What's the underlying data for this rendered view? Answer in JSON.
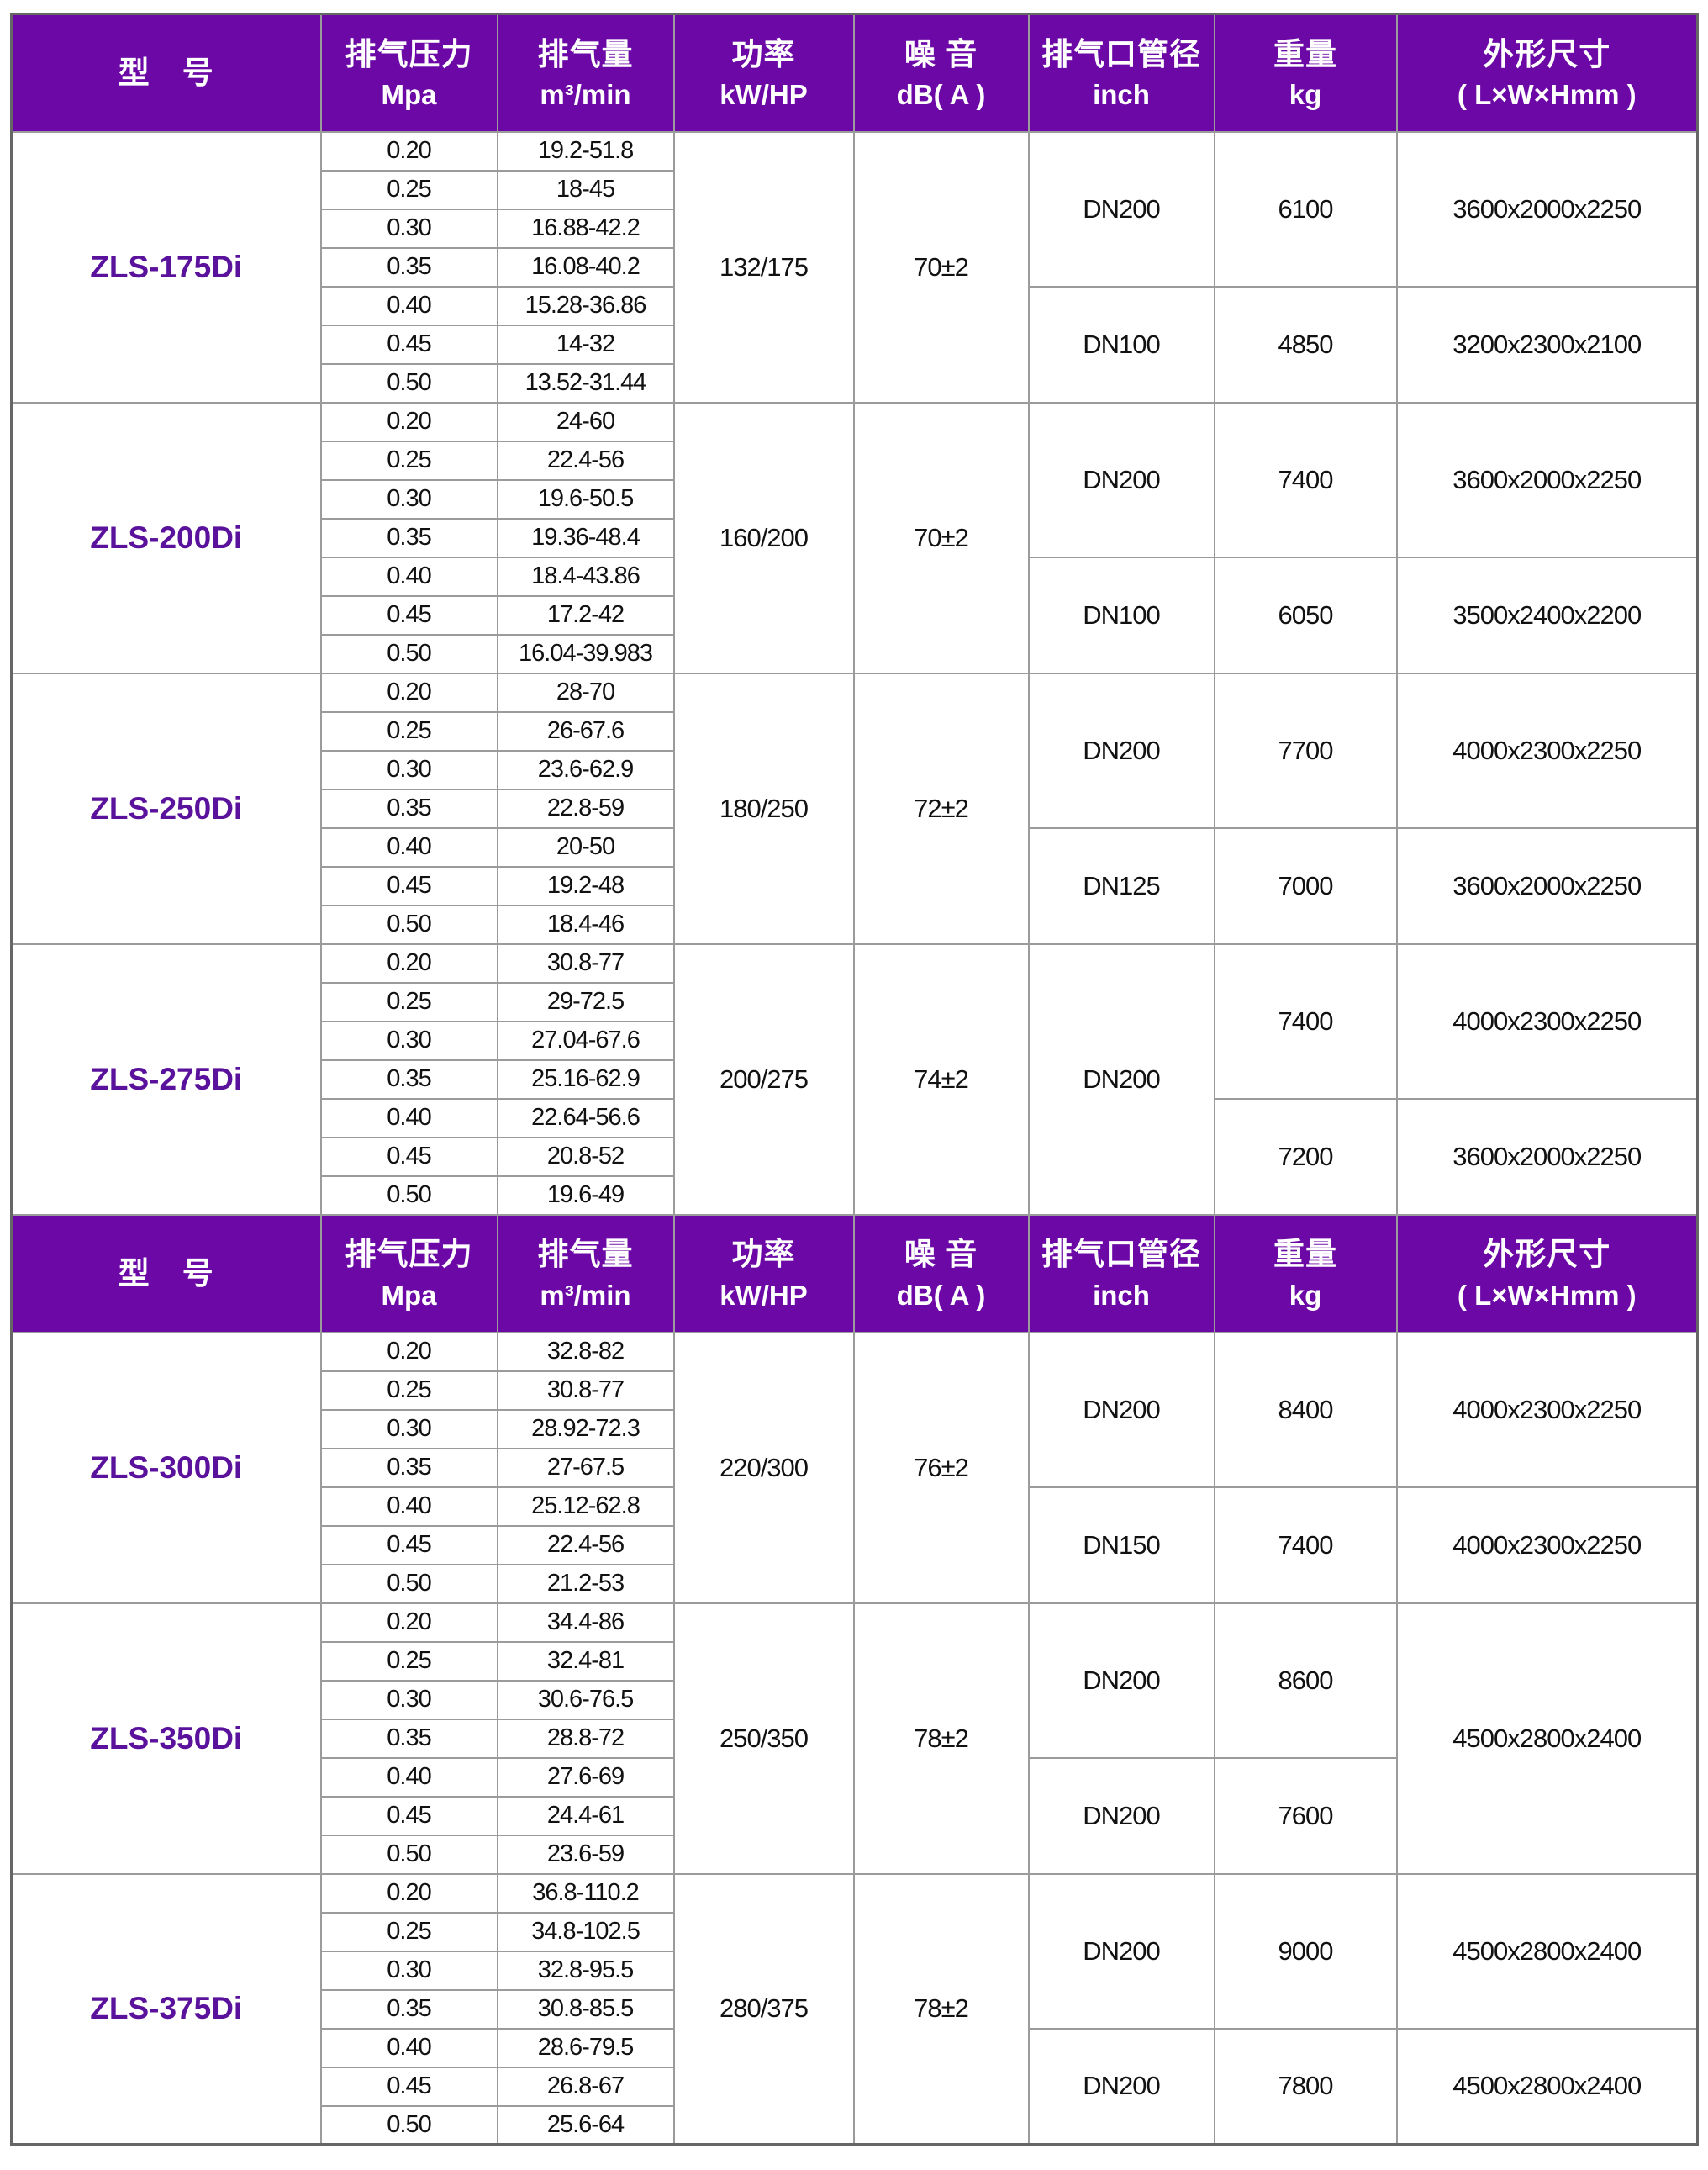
{
  "colors": {
    "header_bg": "#6b08a6",
    "model_text": "#5a119b",
    "grid": "#9b9b9b",
    "outer_border": "#666666",
    "text": "#111111"
  },
  "header_cells": [
    {
      "name": "model",
      "lines": [
        "型　号"
      ]
    },
    {
      "name": "pressure",
      "lines": [
        "排气压力",
        "Mpa"
      ]
    },
    {
      "name": "displacement",
      "lines": [
        "排气量",
        "m³/min"
      ]
    },
    {
      "name": "power",
      "lines": [
        "功率",
        "kW/HP"
      ]
    },
    {
      "name": "noise",
      "lines": [
        "噪 音",
        "dB( A )"
      ]
    },
    {
      "name": "pipe",
      "lines": [
        "排气口管径",
        "inch"
      ]
    },
    {
      "name": "weight",
      "lines": [
        "重量",
        "kg"
      ]
    },
    {
      "name": "dims",
      "lines": [
        "外形尺寸",
        "( L×W×Hmm )"
      ]
    }
  ],
  "sections": [
    {
      "models": [
        {
          "name": "ZLS-175Di",
          "power": "132/175",
          "noise": "70±2",
          "rows": [
            [
              "0.20",
              "19.2-51.8"
            ],
            [
              "0.25",
              "18-45"
            ],
            [
              "0.30",
              "16.88-42.2"
            ],
            [
              "0.35",
              "16.08-40.2"
            ],
            [
              "0.40",
              "15.28-36.86"
            ],
            [
              "0.45",
              "14-32"
            ],
            [
              "0.50",
              "13.52-31.44"
            ]
          ],
          "pipe_groups": [
            {
              "span": 4,
              "value": "DN200"
            },
            {
              "span": 3,
              "value": "DN100"
            }
          ],
          "weight_groups": [
            {
              "span": 4,
              "value": "6100"
            },
            {
              "span": 3,
              "value": "4850"
            }
          ],
          "dims_groups": [
            {
              "span": 4,
              "value": "3600x2000x2250"
            },
            {
              "span": 3,
              "value": "3200x2300x2100"
            }
          ]
        },
        {
          "name": "ZLS-200Di",
          "power": "160/200",
          "noise": "70±2",
          "rows": [
            [
              "0.20",
              "24-60"
            ],
            [
              "0.25",
              "22.4-56"
            ],
            [
              "0.30",
              "19.6-50.5"
            ],
            [
              "0.35",
              "19.36-48.4"
            ],
            [
              "0.40",
              "18.4-43.86"
            ],
            [
              "0.45",
              "17.2-42"
            ],
            [
              "0.50",
              "16.04-39.983"
            ]
          ],
          "pipe_groups": [
            {
              "span": 4,
              "value": "DN200"
            },
            {
              "span": 3,
              "value": "DN100"
            }
          ],
          "weight_groups": [
            {
              "span": 4,
              "value": "7400"
            },
            {
              "span": 3,
              "value": "6050"
            }
          ],
          "dims_groups": [
            {
              "span": 4,
              "value": "3600x2000x2250"
            },
            {
              "span": 3,
              "value": "3500x2400x2200"
            }
          ]
        },
        {
          "name": "ZLS-250Di",
          "power": "180/250",
          "noise": "72±2",
          "rows": [
            [
              "0.20",
              "28-70"
            ],
            [
              "0.25",
              "26-67.6"
            ],
            [
              "0.30",
              "23.6-62.9"
            ],
            [
              "0.35",
              "22.8-59"
            ],
            [
              "0.40",
              "20-50"
            ],
            [
              "0.45",
              "19.2-48"
            ],
            [
              "0.50",
              "18.4-46"
            ]
          ],
          "pipe_groups": [
            {
              "span": 4,
              "value": "DN200"
            },
            {
              "span": 3,
              "value": "DN125"
            }
          ],
          "weight_groups": [
            {
              "span": 4,
              "value": "7700"
            },
            {
              "span": 3,
              "value": "7000"
            }
          ],
          "dims_groups": [
            {
              "span": 4,
              "value": "4000x2300x2250"
            },
            {
              "span": 3,
              "value": "3600x2000x2250"
            }
          ]
        },
        {
          "name": "ZLS-275Di",
          "power": "200/275",
          "noise": "74±2",
          "rows": [
            [
              "0.20",
              "30.8-77"
            ],
            [
              "0.25",
              "29-72.5"
            ],
            [
              "0.30",
              "27.04-67.6"
            ],
            [
              "0.35",
              "25.16-62.9"
            ],
            [
              "0.40",
              "22.64-56.6"
            ],
            [
              "0.45",
              "20.8-52"
            ],
            [
              "0.50",
              "19.6-49"
            ]
          ],
          "pipe_groups": [
            {
              "span": 7,
              "value": "DN200"
            }
          ],
          "weight_groups": [
            {
              "span": 4,
              "value": "7400"
            },
            {
              "span": 3,
              "value": "7200"
            }
          ],
          "dims_groups": [
            {
              "span": 4,
              "value": "4000x2300x2250"
            },
            {
              "span": 3,
              "value": "3600x2000x2250"
            }
          ]
        }
      ]
    },
    {
      "models": [
        {
          "name": "ZLS-300Di",
          "power": "220/300",
          "noise": "76±2",
          "rows": [
            [
              "0.20",
              "32.8-82"
            ],
            [
              "0.25",
              "30.8-77"
            ],
            [
              "0.30",
              "28.92-72.3"
            ],
            [
              "0.35",
              "27-67.5"
            ],
            [
              "0.40",
              "25.12-62.8"
            ],
            [
              "0.45",
              "22.4-56"
            ],
            [
              "0.50",
              "21.2-53"
            ]
          ],
          "pipe_groups": [
            {
              "span": 4,
              "value": "DN200"
            },
            {
              "span": 3,
              "value": "DN150"
            }
          ],
          "weight_groups": [
            {
              "span": 4,
              "value": "8400"
            },
            {
              "span": 3,
              "value": "7400"
            }
          ],
          "dims_groups": [
            {
              "span": 4,
              "value": "4000x2300x2250"
            },
            {
              "span": 3,
              "value": "4000x2300x2250"
            }
          ]
        },
        {
          "name": "ZLS-350Di",
          "power": "250/350",
          "noise": "78±2",
          "rows": [
            [
              "0.20",
              "34.4-86"
            ],
            [
              "0.25",
              "32.4-81"
            ],
            [
              "0.30",
              "30.6-76.5"
            ],
            [
              "0.35",
              "28.8-72"
            ],
            [
              "0.40",
              "27.6-69"
            ],
            [
              "0.45",
              "24.4-61"
            ],
            [
              "0.50",
              "23.6-59"
            ]
          ],
          "pipe_groups": [
            {
              "span": 4,
              "value": "DN200"
            },
            {
              "span": 3,
              "value": "DN200"
            }
          ],
          "weight_groups": [
            {
              "span": 4,
              "value": "8600"
            },
            {
              "span": 3,
              "value": "7600"
            }
          ],
          "dims_groups": [
            {
              "span": 7,
              "value": "4500x2800x2400"
            }
          ]
        },
        {
          "name": "ZLS-375Di",
          "power": "280/375",
          "noise": "78±2",
          "rows": [
            [
              "0.20",
              "36.8-110.2"
            ],
            [
              "0.25",
              "34.8-102.5"
            ],
            [
              "0.30",
              "32.8-95.5"
            ],
            [
              "0.35",
              "30.8-85.5"
            ],
            [
              "0.40",
              "28.6-79.5"
            ],
            [
              "0.45",
              "26.8-67"
            ],
            [
              "0.50",
              "25.6-64"
            ]
          ],
          "pipe_groups": [
            {
              "span": 4,
              "value": "DN200"
            },
            {
              "span": 3,
              "value": "DN200"
            }
          ],
          "weight_groups": [
            {
              "span": 4,
              "value": "9000"
            },
            {
              "span": 3,
              "value": "7800"
            }
          ],
          "dims_groups": [
            {
              "span": 4,
              "value": "4500x2800x2400"
            },
            {
              "span": 3,
              "value": "4500x2800x2400"
            }
          ]
        }
      ]
    }
  ]
}
